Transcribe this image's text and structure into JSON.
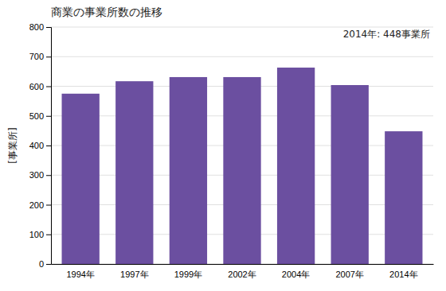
{
  "chart_data": {
    "type": "bar",
    "title": "商業の事業所数の推移",
    "ylabel": "[事業所]",
    "annotation": "2014年: 448事業所",
    "categories": [
      "1994年",
      "1997年",
      "1999年",
      "2002年",
      "2004年",
      "2007年",
      "2014年"
    ],
    "values": [
      575,
      617,
      631,
      631,
      663,
      604,
      448
    ],
    "color": "#6b4fa0",
    "ylim": [
      0,
      800
    ],
    "yticks": [
      0,
      100,
      200,
      300,
      400,
      500,
      600,
      700,
      800
    ],
    "grid": true
  }
}
